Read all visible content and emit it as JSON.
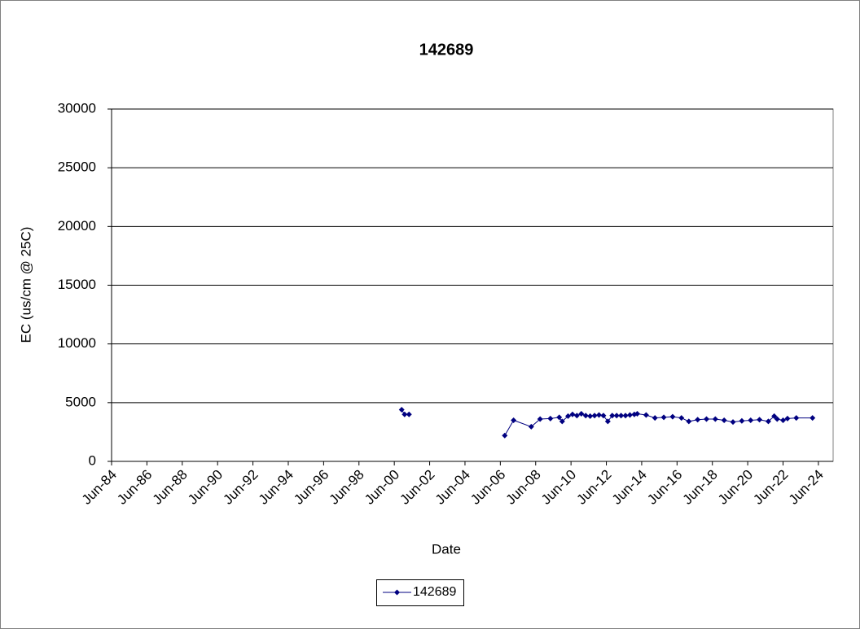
{
  "chart_data": {
    "type": "line",
    "title": "142689",
    "x_label": "Date",
    "y_label": "EC (us/cm @ 25C)",
    "x": [
      "2000-11",
      "2001-01",
      "2001-04",
      null,
      "2006-09",
      "2007-03",
      "2008-03",
      "2008-09",
      "2009-04",
      "2009-10",
      "2009-12",
      "2010-04",
      "2010-07",
      "2010-10",
      "2011-01",
      "2011-04",
      "2011-07",
      "2011-10",
      "2012-01",
      "2012-04",
      "2012-07",
      "2012-10",
      "2013-01",
      "2013-04",
      "2013-07",
      "2013-10",
      "2014-01",
      "2014-03",
      "2014-09",
      "2015-03",
      "2015-09",
      "2016-03",
      "2016-09",
      "2017-02",
      "2017-08",
      "2018-02",
      "2018-08",
      "2019-02",
      "2019-08",
      "2020-02",
      "2020-08",
      "2021-02",
      "2021-08",
      "2021-12",
      "2022-02",
      "2022-06",
      "2022-09",
      "2023-03",
      "2024-02"
    ],
    "series": [
      {
        "name": "142689",
        "color": "#000080",
        "values": [
          4400,
          4000,
          4000,
          null,
          2200,
          3500,
          2950,
          3600,
          3650,
          3750,
          3400,
          3850,
          4000,
          3900,
          4050,
          3900,
          3850,
          3900,
          3950,
          3900,
          3400,
          3900,
          3900,
          3900,
          3900,
          3950,
          4000,
          4050,
          3950,
          3700,
          3750,
          3800,
          3700,
          3400,
          3550,
          3600,
          3600,
          3500,
          3350,
          3450,
          3500,
          3550,
          3400,
          3850,
          3600,
          3500,
          3650,
          3700,
          3700
        ]
      }
    ],
    "xlim": [
      "1984-06",
      "2025-04"
    ],
    "xticks": [
      {
        "value": "1984-06",
        "label": "Jun-84"
      },
      {
        "value": "1986-06",
        "label": "Jun-86"
      },
      {
        "value": "1988-06",
        "label": "Jun-88"
      },
      {
        "value": "1990-06",
        "label": "Jun-90"
      },
      {
        "value": "1992-06",
        "label": "Jun-92"
      },
      {
        "value": "1994-06",
        "label": "Jun-94"
      },
      {
        "value": "1996-06",
        "label": "Jun-96"
      },
      {
        "value": "1998-06",
        "label": "Jun-98"
      },
      {
        "value": "2000-06",
        "label": "Jun-00"
      },
      {
        "value": "2002-06",
        "label": "Jun-02"
      },
      {
        "value": "2004-06",
        "label": "Jun-04"
      },
      {
        "value": "2006-06",
        "label": "Jun-06"
      },
      {
        "value": "2008-06",
        "label": "Jun-08"
      },
      {
        "value": "2010-06",
        "label": "Jun-10"
      },
      {
        "value": "2012-06",
        "label": "Jun-12"
      },
      {
        "value": "2014-06",
        "label": "Jun-14"
      },
      {
        "value": "2016-06",
        "label": "Jun-16"
      },
      {
        "value": "2018-06",
        "label": "Jun-18"
      },
      {
        "value": "2020-06",
        "label": "Jun-20"
      },
      {
        "value": "2022-06",
        "label": "Jun-22"
      },
      {
        "value": "2024-06",
        "label": "Jun-24"
      }
    ],
    "ylim": [
      0,
      30000
    ],
    "yticks": [
      0,
      5000,
      10000,
      15000,
      20000,
      25000,
      30000
    ],
    "grid": true,
    "legend": "bottom"
  }
}
